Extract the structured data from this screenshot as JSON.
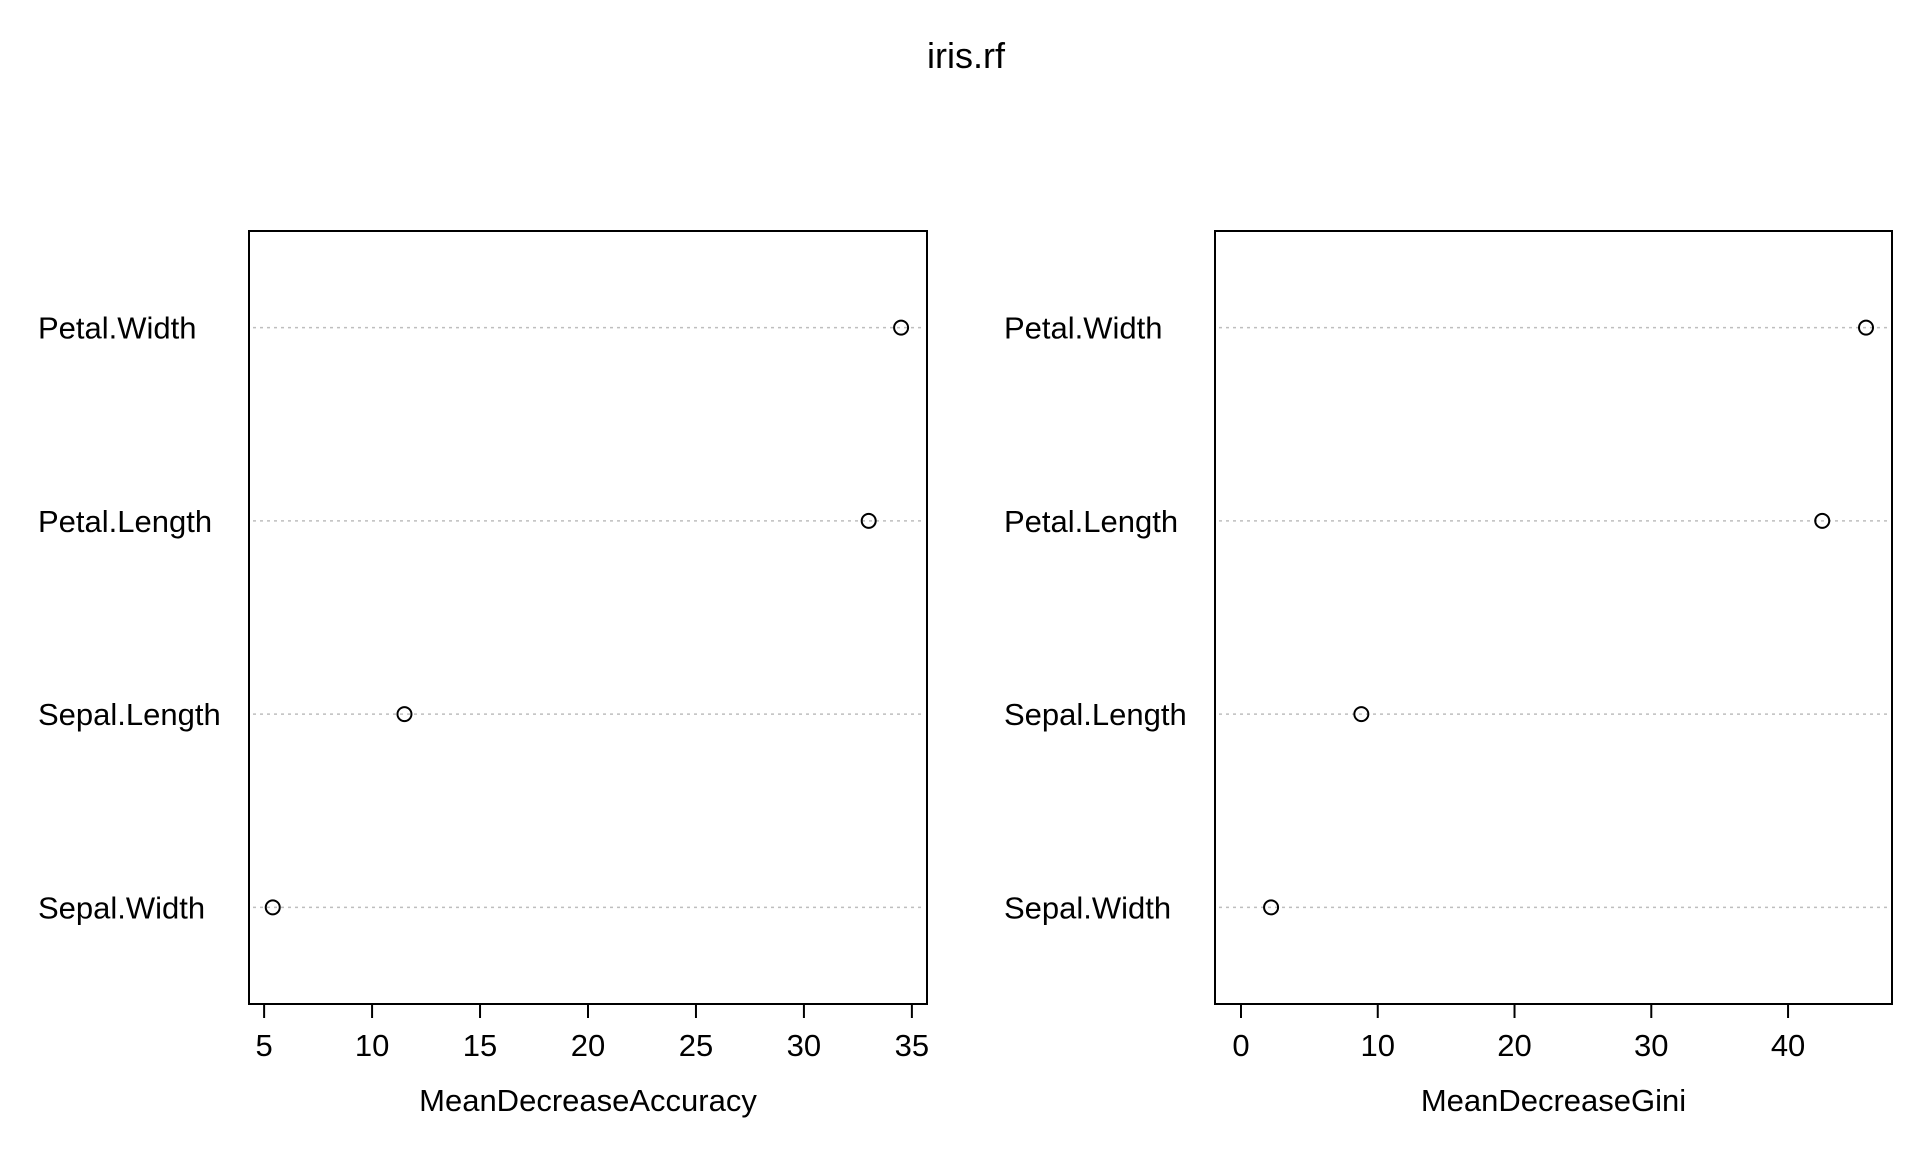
{
  "title": "iris.rf",
  "chart_data": [
    {
      "type": "scatter",
      "title": "iris.rf",
      "variables": [
        "Petal.Width",
        "Petal.Length",
        "Sepal.Length",
        "Sepal.Width"
      ],
      "values": [
        34.5,
        33.0,
        11.5,
        5.4
      ],
      "xlabel": "MeanDecreaseAccuracy",
      "ylabel": "",
      "xlim": [
        4.3,
        35.7
      ],
      "xticks": [
        5,
        10,
        15,
        20,
        25,
        30,
        35
      ],
      "grid": "dotted-horizontal",
      "marker": "open-circle"
    },
    {
      "type": "scatter",
      "title": "iris.rf",
      "variables": [
        "Petal.Width",
        "Petal.Length",
        "Sepal.Length",
        "Sepal.Width"
      ],
      "values": [
        45.7,
        42.5,
        8.8,
        2.2
      ],
      "xlabel": "MeanDecreaseGini",
      "ylabel": "",
      "xlim": [
        -1.9,
        47.6
      ],
      "xticks": [
        0,
        10,
        20,
        30,
        40
      ],
      "grid": "dotted-horizontal",
      "marker": "open-circle"
    }
  ],
  "colors": {
    "background": "#ffffff",
    "axis": "#000000",
    "grid": "#bebebe",
    "marker": "#000000"
  }
}
